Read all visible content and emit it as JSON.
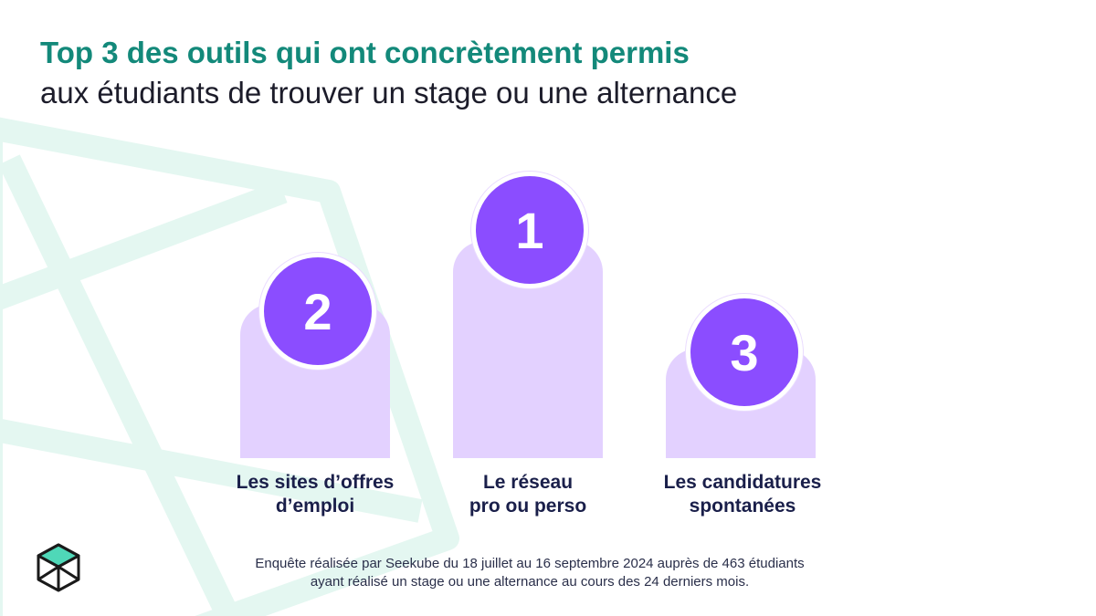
{
  "header": {
    "title": "Top 3 des outils qui ont concrètement permis",
    "subtitle": "aux étudiants de trouver un stage ou une alternance"
  },
  "ranking": [
    {
      "rank": "1",
      "label_line1": "Le réseau",
      "label_line2": "pro ou perso"
    },
    {
      "rank": "2",
      "label_line1": "Les sites d’offres",
      "label_line2": "d’emploi"
    },
    {
      "rank": "3",
      "label_line1": "Les candidatures",
      "label_line2": "spontanées"
    }
  ],
  "footer": {
    "line1": "Enquête réalisée par Seekube du 18 juillet au 16 septembre 2024 auprès de 463 étudiants",
    "line2": "ayant réalisé un stage ou une alternance au cours des 24 derniers mois."
  },
  "colors": {
    "title_accent": "#13897a",
    "badge": "#8b4dff",
    "podium": "#e3d1ff",
    "label": "#1a1f4a",
    "background_deco": "#e4f7f1"
  },
  "icons": {
    "logo": "seekube-cube-logo"
  }
}
